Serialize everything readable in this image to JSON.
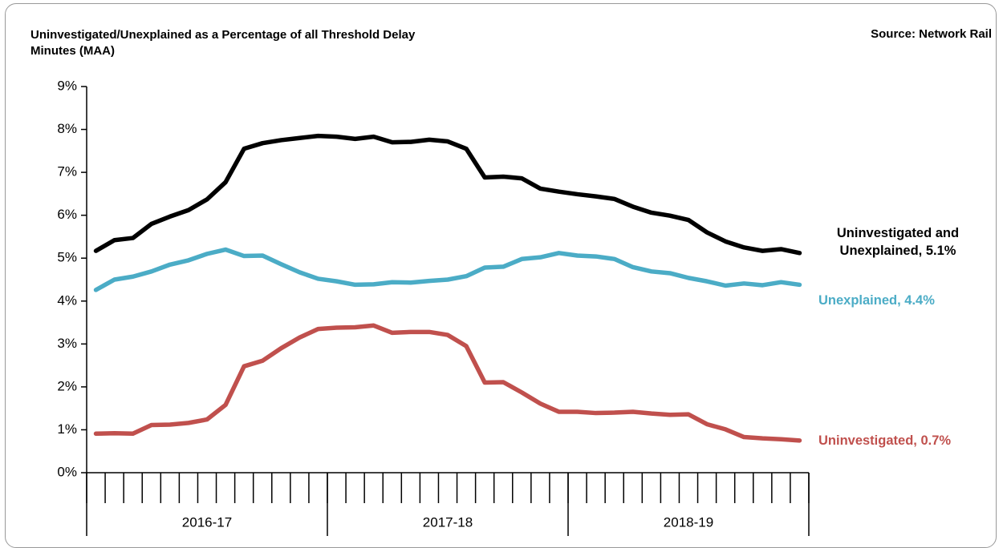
{
  "chart_data": {
    "type": "line",
    "title": "Uninvestigated/Unexplained as a Percentage of all Threshold Delay Minutes (MAA)",
    "source": "Source: Network Rail",
    "categories": [
      null,
      null,
      null,
      null,
      null,
      null,
      null,
      null,
      null,
      null,
      null,
      null,
      null,
      null,
      null,
      null,
      null,
      null,
      null,
      null,
      null,
      null,
      null,
      null,
      null,
      null,
      null,
      null,
      null,
      null,
      null,
      null,
      null,
      null,
      null,
      null,
      null,
      null,
      null
    ],
    "x_groups": [
      "2016-17",
      "2017-18",
      "2018-19"
    ],
    "ylim": [
      0,
      9
    ],
    "yticks": [
      {
        "value": 0,
        "label": "0%"
      },
      {
        "value": 1,
        "label": "1%"
      },
      {
        "value": 2,
        "label": "2%"
      },
      {
        "value": 3,
        "label": "3%"
      },
      {
        "value": 4,
        "label": "4%"
      },
      {
        "value": 5,
        "label": "5%"
      },
      {
        "value": 6,
        "label": "6%"
      },
      {
        "value": 7,
        "label": "7%"
      },
      {
        "value": 8,
        "label": "8%"
      },
      {
        "value": 9,
        "label": "9%"
      }
    ],
    "grid": false,
    "series": [
      {
        "name": "Uninvestigated and Unexplained, 5.1%",
        "color": "#000000",
        "values": [
          5.17,
          5.42,
          5.47,
          5.8,
          5.97,
          6.12,
          6.37,
          6.77,
          7.55,
          7.68,
          7.75,
          7.8,
          7.85,
          7.83,
          7.78,
          7.83,
          7.7,
          7.71,
          7.76,
          7.72,
          7.55,
          6.88,
          6.9,
          6.86,
          6.62,
          6.55,
          6.49,
          6.44,
          6.38,
          6.2,
          6.06,
          5.99,
          5.89,
          5.6,
          5.39,
          5.25,
          5.17,
          5.21,
          5.12
        ]
      },
      {
        "name": "Unexplained, 4.4%",
        "color": "#4bacc6",
        "values": [
          4.26,
          4.5,
          4.57,
          4.69,
          4.85,
          4.95,
          5.1,
          5.2,
          5.05,
          5.06,
          4.86,
          4.67,
          4.52,
          4.46,
          4.38,
          4.39,
          4.44,
          4.43,
          4.47,
          4.5,
          4.58,
          4.78,
          4.8,
          4.98,
          5.02,
          5.12,
          5.06,
          5.04,
          4.98,
          4.79,
          4.69,
          4.65,
          4.54,
          4.46,
          4.36,
          4.41,
          4.37,
          4.44,
          4.38
        ]
      },
      {
        "name": "Uninvestigated, 0.7%",
        "color": "#c0504d",
        "values": [
          0.91,
          0.92,
          0.91,
          1.11,
          1.12,
          1.16,
          1.24,
          1.58,
          2.48,
          2.61,
          2.9,
          3.15,
          3.35,
          3.38,
          3.39,
          3.43,
          3.26,
          3.28,
          3.28,
          3.21,
          2.95,
          2.1,
          2.11,
          1.87,
          1.61,
          1.42,
          1.42,
          1.39,
          1.4,
          1.42,
          1.38,
          1.35,
          1.36,
          1.13,
          1.01,
          0.83,
          0.8,
          0.78,
          0.75
        ]
      }
    ]
  }
}
